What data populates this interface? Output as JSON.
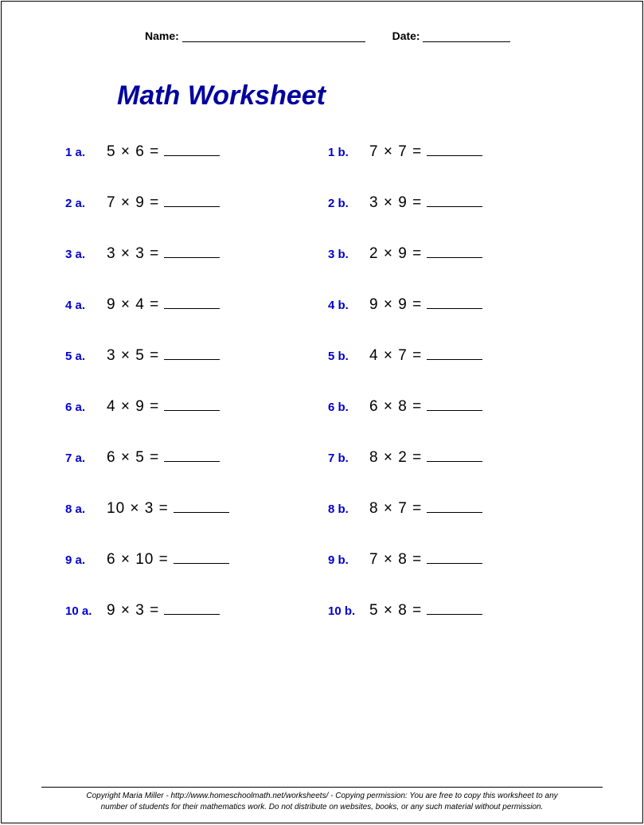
{
  "header": {
    "name_label": "Name:",
    "date_label": "Date:"
  },
  "title": {
    "text": "Math Worksheet",
    "color": "#0000a0",
    "fontsize": 34
  },
  "label_color": "#0000d0",
  "expr_color": "#000000",
  "problems": [
    {
      "a_label": "1 a.",
      "a_expr": "5  ×  6  =",
      "b_label": "1 b.",
      "b_expr": "7  ×  7  ="
    },
    {
      "a_label": "2 a.",
      "a_expr": "7  ×  9  =",
      "b_label": "2 b.",
      "b_expr": "3  ×  9  ="
    },
    {
      "a_label": "3 a.",
      "a_expr": "3  ×  3  =",
      "b_label": "3 b.",
      "b_expr": "2  ×  9  ="
    },
    {
      "a_label": "4 a.",
      "a_expr": "9  ×  4  =",
      "b_label": "4 b.",
      "b_expr": "9  ×  9  ="
    },
    {
      "a_label": "5 a.",
      "a_expr": "3  ×  5  =",
      "b_label": "5 b.",
      "b_expr": "4  ×  7  ="
    },
    {
      "a_label": "6 a.",
      "a_expr": "4  ×  9  =",
      "b_label": "6 b.",
      "b_expr": "6  ×  8  ="
    },
    {
      "a_label": "7 a.",
      "a_expr": "6  ×  5  =",
      "b_label": "7 b.",
      "b_expr": "8  ×  2  ="
    },
    {
      "a_label": "8 a.",
      "a_expr": "10  ×  3  =",
      "b_label": "8 b.",
      "b_expr": "8  ×  7  ="
    },
    {
      "a_label": "9 a.",
      "a_expr": "6  ×  10  =",
      "b_label": "9 b.",
      "b_expr": "7  ×  8  ="
    },
    {
      "a_label": "10 a.",
      "a_expr": "9  ×  3  =",
      "b_label": "10 b.",
      "b_expr": "5  ×  8  ="
    }
  ],
  "footer": {
    "line1": "Copyright Maria Miller - http://www.homeschoolmath.net/worksheets/ - Copying permission: You are free to copy this worksheet to any",
    "line2": "number of students for their mathematics work. Do not distribute on websites, books, or any such material without permission."
  }
}
